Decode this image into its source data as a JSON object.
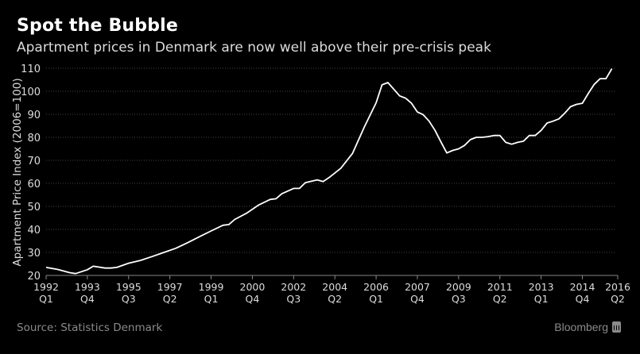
{
  "header": {
    "title": "Spot the Bubble",
    "subtitle": "Apartment prices in Denmark are now well above their pre-crisis peak"
  },
  "footer": {
    "source": "Source: Statistics Denmark",
    "brand": "Bloomberg",
    "brand_icon": "bloomberg-chart-icon"
  },
  "colors": {
    "background": "#000000",
    "line": "#ffffff",
    "grid": "#444444",
    "axis": "#888888",
    "muted_text": "#8a8a8a"
  },
  "chart_data": {
    "type": "line",
    "title": "Spot the Bubble",
    "subtitle": "Apartment prices in Denmark are now well above their pre-crisis peak",
    "xlabel": "",
    "ylabel": "Apartment Price Index (2006=100)",
    "ylim": [
      20,
      110
    ],
    "yticks": [
      20,
      30,
      40,
      50,
      60,
      70,
      80,
      90,
      100,
      110
    ],
    "grid": true,
    "x_start": "1992 Q1",
    "x_frequency": "quarterly",
    "x_range_quarters": [
      0,
      97
    ],
    "xticks": [
      {
        "q": 0,
        "year": "1992",
        "quarter": "Q1"
      },
      {
        "q": 7,
        "year": "1993",
        "quarter": "Q4"
      },
      {
        "q": 14,
        "year": "1995",
        "quarter": "Q3"
      },
      {
        "q": 21,
        "year": "1997",
        "quarter": "Q2"
      },
      {
        "q": 28,
        "year": "1999",
        "quarter": "Q1"
      },
      {
        "q": 35,
        "year": "2000",
        "quarter": "Q4"
      },
      {
        "q": 42,
        "year": "2002",
        "quarter": "Q3"
      },
      {
        "q": 49,
        "year": "2004",
        "quarter": "Q2"
      },
      {
        "q": 56,
        "year": "2006",
        "quarter": "Q1"
      },
      {
        "q": 63,
        "year": "2007",
        "quarter": "Q4"
      },
      {
        "q": 70,
        "year": "2009",
        "quarter": "Q3"
      },
      {
        "q": 77,
        "year": "2011",
        "quarter": "Q2"
      },
      {
        "q": 84,
        "year": "2013",
        "quarter": "Q1"
      },
      {
        "q": 91,
        "year": "2014",
        "quarter": "Q4"
      },
      {
        "q": 97,
        "year": "2016",
        "quarter": "Q2"
      }
    ],
    "series": [
      {
        "name": "Apartment Price Index",
        "points": [
          [
            0,
            23.5
          ],
          [
            2,
            22.6
          ],
          [
            4,
            21.2
          ],
          [
            5,
            20.8
          ],
          [
            7,
            22.5
          ],
          [
            8,
            24.0
          ],
          [
            10,
            23.2
          ],
          [
            11,
            23.2
          ],
          [
            12,
            23.5
          ],
          [
            14,
            25.3
          ],
          [
            16,
            26.5
          ],
          [
            18,
            28.2
          ],
          [
            20,
            30.0
          ],
          [
            22,
            31.8
          ],
          [
            24,
            34.2
          ],
          [
            26,
            36.8
          ],
          [
            28,
            39.3
          ],
          [
            30,
            41.8
          ],
          [
            31,
            42.1
          ],
          [
            32,
            44.3
          ],
          [
            34,
            47.0
          ],
          [
            36,
            50.5
          ],
          [
            38,
            53.0
          ],
          [
            39,
            53.3
          ],
          [
            40,
            55.5
          ],
          [
            42,
            57.8
          ],
          [
            43,
            57.8
          ],
          [
            44,
            60.3
          ],
          [
            46,
            61.5
          ],
          [
            47,
            60.8
          ],
          [
            48,
            62.5
          ],
          [
            50,
            66.5
          ],
          [
            52,
            73.0
          ],
          [
            54,
            84.5
          ],
          [
            56,
            95.0
          ],
          [
            57,
            102.8
          ],
          [
            58,
            103.8
          ],
          [
            60,
            98.0
          ],
          [
            61,
            97.0
          ],
          [
            62,
            94.8
          ],
          [
            63,
            91.0
          ],
          [
            64,
            89.8
          ],
          [
            65,
            87.0
          ],
          [
            66,
            83.0
          ],
          [
            67,
            78.0
          ],
          [
            68,
            73.2
          ],
          [
            69,
            74.3
          ],
          [
            70,
            75.0
          ],
          [
            71,
            76.5
          ],
          [
            72,
            79.0
          ],
          [
            73,
            80.0
          ],
          [
            74,
            80.0
          ],
          [
            75,
            80.3
          ],
          [
            76,
            80.8
          ],
          [
            77,
            80.8
          ],
          [
            78,
            77.8
          ],
          [
            79,
            77.0
          ],
          [
            80,
            77.8
          ],
          [
            81,
            78.3
          ],
          [
            82,
            80.8
          ],
          [
            83,
            80.8
          ],
          [
            84,
            83.0
          ],
          [
            85,
            86.2
          ],
          [
            86,
            87.0
          ],
          [
            87,
            88.0
          ],
          [
            88,
            90.5
          ],
          [
            89,
            93.3
          ],
          [
            90,
            94.3
          ],
          [
            91,
            94.8
          ],
          [
            92,
            99.0
          ],
          [
            93,
            103.0
          ],
          [
            94,
            105.5
          ],
          [
            95,
            105.5
          ],
          [
            96,
            109.8
          ]
        ]
      }
    ]
  }
}
